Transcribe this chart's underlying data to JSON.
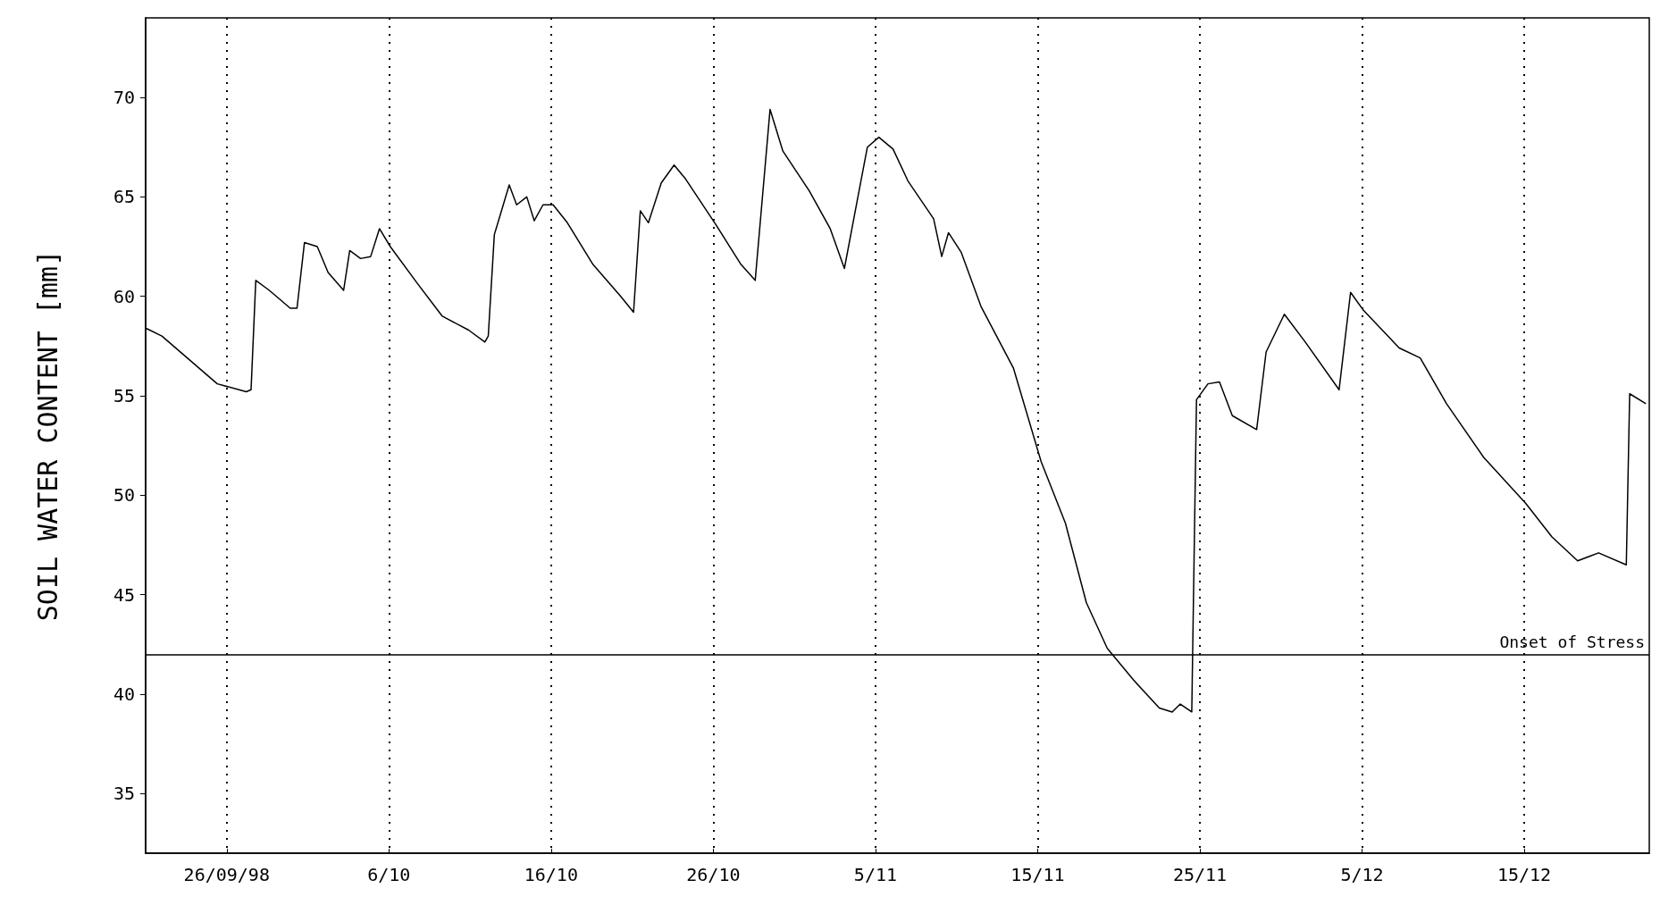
{
  "chart_data": {
    "type": "line",
    "ylabel": "SOIL WATER CONTENT [mm]",
    "x": [
      "1998-09-21T00:00",
      "1998-09-22T00:00",
      "1998-09-25T10:00",
      "1998-09-27T05:00",
      "1998-09-27T12:00",
      "1998-09-27T19:00",
      "1998-09-28T15:00",
      "1998-09-29T22:00",
      "1998-09-30T08:00",
      "1998-09-30T19:00",
      "1998-10-01T14:00",
      "1998-10-02T06:00",
      "1998-10-03T05:00",
      "1998-10-03T14:00",
      "1998-10-04T06:00",
      "1998-10-04T21:00",
      "1998-10-05T10:00",
      "1998-10-06T02:00",
      "1998-10-07T17:00",
      "1998-10-09T07:00",
      "1998-10-10T22:00",
      "1998-10-11T22:00",
      "1998-10-12T03:00",
      "1998-10-12T12:00",
      "1998-10-13T10:00",
      "1998-10-13T21:00",
      "1998-10-14T12:00",
      "1998-10-14T23:00",
      "1998-10-15T12:00",
      "1998-10-16T03:00",
      "1998-10-17T00:00",
      "1998-10-18T14:00",
      "1998-10-20T07:00",
      "1998-10-21T02:00",
      "1998-10-21T12:00",
      "1998-10-22T00:00",
      "1998-10-22T19:00",
      "1998-10-23T14:00",
      "1998-10-24T07:00",
      "1998-10-26T02:00",
      "1998-10-27T17:00",
      "1998-10-28T14:00",
      "1998-10-29T12:00",
      "1998-10-30T07:00",
      "1998-10-31T22:00",
      "1998-11-02T05:00",
      "1998-11-03T02:00",
      "1998-11-03T22:00",
      "1998-11-04T12:00",
      "1998-11-05T05:00",
      "1998-11-06T02:00",
      "1998-11-07T00:00",
      "1998-11-08T14:00",
      "1998-11-09T02:00",
      "1998-11-09T12:00",
      "1998-11-10T07:00",
      "1998-11-11T12:00",
      "1998-11-13T12:00",
      "1998-11-15T05:00",
      "1998-11-16T17:00",
      "1998-11-18T00:00",
      "1998-11-19T07:00",
      "1998-11-20T22:00",
      "1998-11-22T12:00",
      "1998-11-23T07:00",
      "1998-11-23T19:00",
      "1998-11-24T12:00",
      "1998-11-24T19:00",
      "1998-11-25T12:00",
      "1998-11-26T05:00",
      "1998-11-27T00:00",
      "1998-11-28T12:00",
      "1998-11-29T02:00",
      "1998-11-30T05:00",
      "1998-12-01T12:00",
      "1998-12-03T14:00",
      "1998-12-04T07:00",
      "1998-12-05T02:00",
      "1998-12-07T07:00",
      "1998-12-08T14:00",
      "1998-12-10T05:00",
      "1998-12-12T12:00",
      "1998-12-15T02:00",
      "1998-12-16T17:00",
      "1998-12-18T07:00",
      "1998-12-19T14:00",
      "1998-12-21T07:00",
      "1998-12-21T12:00",
      "1998-12-22T12:00"
    ],
    "series": [
      {
        "color": "#000000",
        "values": [
          58.4,
          58.0,
          55.6,
          55.2,
          55.3,
          60.8,
          60.3,
          59.4,
          59.4,
          62.7,
          62.5,
          61.2,
          60.3,
          62.3,
          61.9,
          62.0,
          63.4,
          62.5,
          60.7,
          59.0,
          58.3,
          57.7,
          58.0,
          63.1,
          65.6,
          64.6,
          65.0,
          63.8,
          64.6,
          64.6,
          63.7,
          61.6,
          60.0,
          59.2,
          64.3,
          63.7,
          65.7,
          66.6,
          65.9,
          63.7,
          61.6,
          60.8,
          69.4,
          67.3,
          65.3,
          63.4,
          61.4,
          65.0,
          67.5,
          68.0,
          67.4,
          65.8,
          63.9,
          62.0,
          63.2,
          62.2,
          59.5,
          56.4,
          51.7,
          48.6,
          44.6,
          42.3,
          40.7,
          39.3,
          39.1,
          39.5,
          39.1,
          54.8,
          55.6,
          55.7,
          54.0,
          53.3,
          57.2,
          59.1,
          57.7,
          55.3,
          60.2,
          59.3,
          57.4,
          56.9,
          54.6,
          51.9,
          49.6,
          47.9,
          46.7,
          47.1,
          46.5,
          55.1,
          54.6
        ]
      }
    ],
    "xlim": [
      "1998-09-21T00:00",
      "1998-12-22T17:00"
    ],
    "xticks": [
      {
        "value": "1998-09-26",
        "label": "26/09/98"
      },
      {
        "value": "1998-10-06",
        "label": "6/10"
      },
      {
        "value": "1998-10-16",
        "label": "16/10"
      },
      {
        "value": "1998-10-26",
        "label": "26/10"
      },
      {
        "value": "1998-11-05",
        "label": "5/11"
      },
      {
        "value": "1998-11-15",
        "label": "15/11"
      },
      {
        "value": "1998-11-25",
        "label": "25/11"
      },
      {
        "value": "1998-12-05",
        "label": "5/12"
      },
      {
        "value": "1998-12-15",
        "label": "15/12"
      }
    ],
    "ylim": [
      32,
      74
    ],
    "yticks": [
      35,
      40,
      45,
      50,
      55,
      60,
      65,
      70
    ],
    "ref_lines": [
      {
        "axis": "y",
        "value": 42,
        "label": "Onset of Stress"
      }
    ],
    "grid": "x",
    "marker": "none",
    "line_style": "solid"
  }
}
